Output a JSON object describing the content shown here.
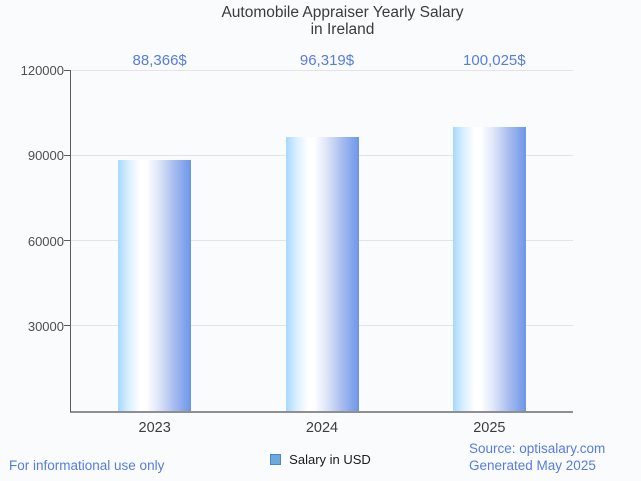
{
  "title": {
    "line1": "Automobile Appraiser Yearly Salary",
    "line2": "in Ireland"
  },
  "chart_data": {
    "type": "bar",
    "categories": [
      "2023",
      "2024",
      "2025"
    ],
    "values": [
      88366,
      96319,
      100025
    ],
    "value_labels": [
      "88,366$",
      "96,319$",
      "100,025$"
    ],
    "series": [
      {
        "name": "Salary in USD",
        "values": [
          88366,
          96319,
          100025
        ]
      }
    ],
    "title": "Automobile Appraiser Yearly Salary in Ireland",
    "xlabel": "",
    "ylabel": "",
    "ylim": [
      0,
      120000
    ],
    "yticks": [
      30000,
      60000,
      90000,
      120000
    ],
    "ytick_labels": [
      "30000",
      "60000",
      "90000",
      "120000"
    ],
    "grid": true,
    "legend_position": "bottom"
  },
  "legend": {
    "label": "Salary in USD",
    "marker_color": "#6fa8dc"
  },
  "footer": {
    "disclaimer": "For informational use only",
    "source": "Source: optisalary.com",
    "generated": "Generated May 2025"
  },
  "colors": {
    "accent_blue": "#577ce0",
    "bar_edge_blue": "#6d96e8",
    "bar_light_blue": "#a6d8ff",
    "background": "#fafbfd",
    "gridline": "#e2e4e9"
  }
}
